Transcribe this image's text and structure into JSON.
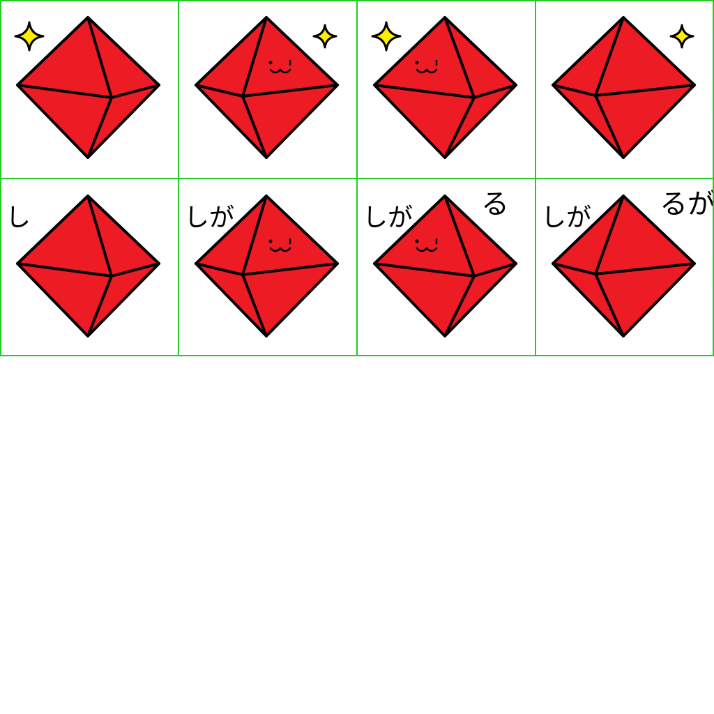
{
  "sprite_sheet": {
    "colors": {
      "background": "#ffffff",
      "grid": "#22cc22",
      "gem_fill": "#ed1c24",
      "outline": "#000000",
      "sparkle": "#ffee00"
    },
    "frames": [
      {
        "gem": "gem-a",
        "face": false,
        "sparkle": "left",
        "caption": []
      },
      {
        "gem": "gem-b",
        "face": true,
        "sparkle": "right",
        "caption": []
      },
      {
        "gem": "gem-c",
        "face": true,
        "sparkle": "left",
        "caption": []
      },
      {
        "gem": "gem-d",
        "face": false,
        "sparkle": "right",
        "caption": []
      },
      {
        "gem": "gem-a",
        "face": false,
        "sparkle": "none",
        "caption": [
          "し"
        ]
      },
      {
        "gem": "gem-b",
        "face": true,
        "sparkle": "none",
        "caption": [
          "しが"
        ]
      },
      {
        "gem": "gem-c",
        "face": true,
        "sparkle": "none",
        "caption": [
          "しが",
          "る"
        ]
      },
      {
        "gem": "gem-d",
        "face": false,
        "sparkle": "none",
        "caption": [
          "しが",
          "るが"
        ]
      }
    ]
  }
}
